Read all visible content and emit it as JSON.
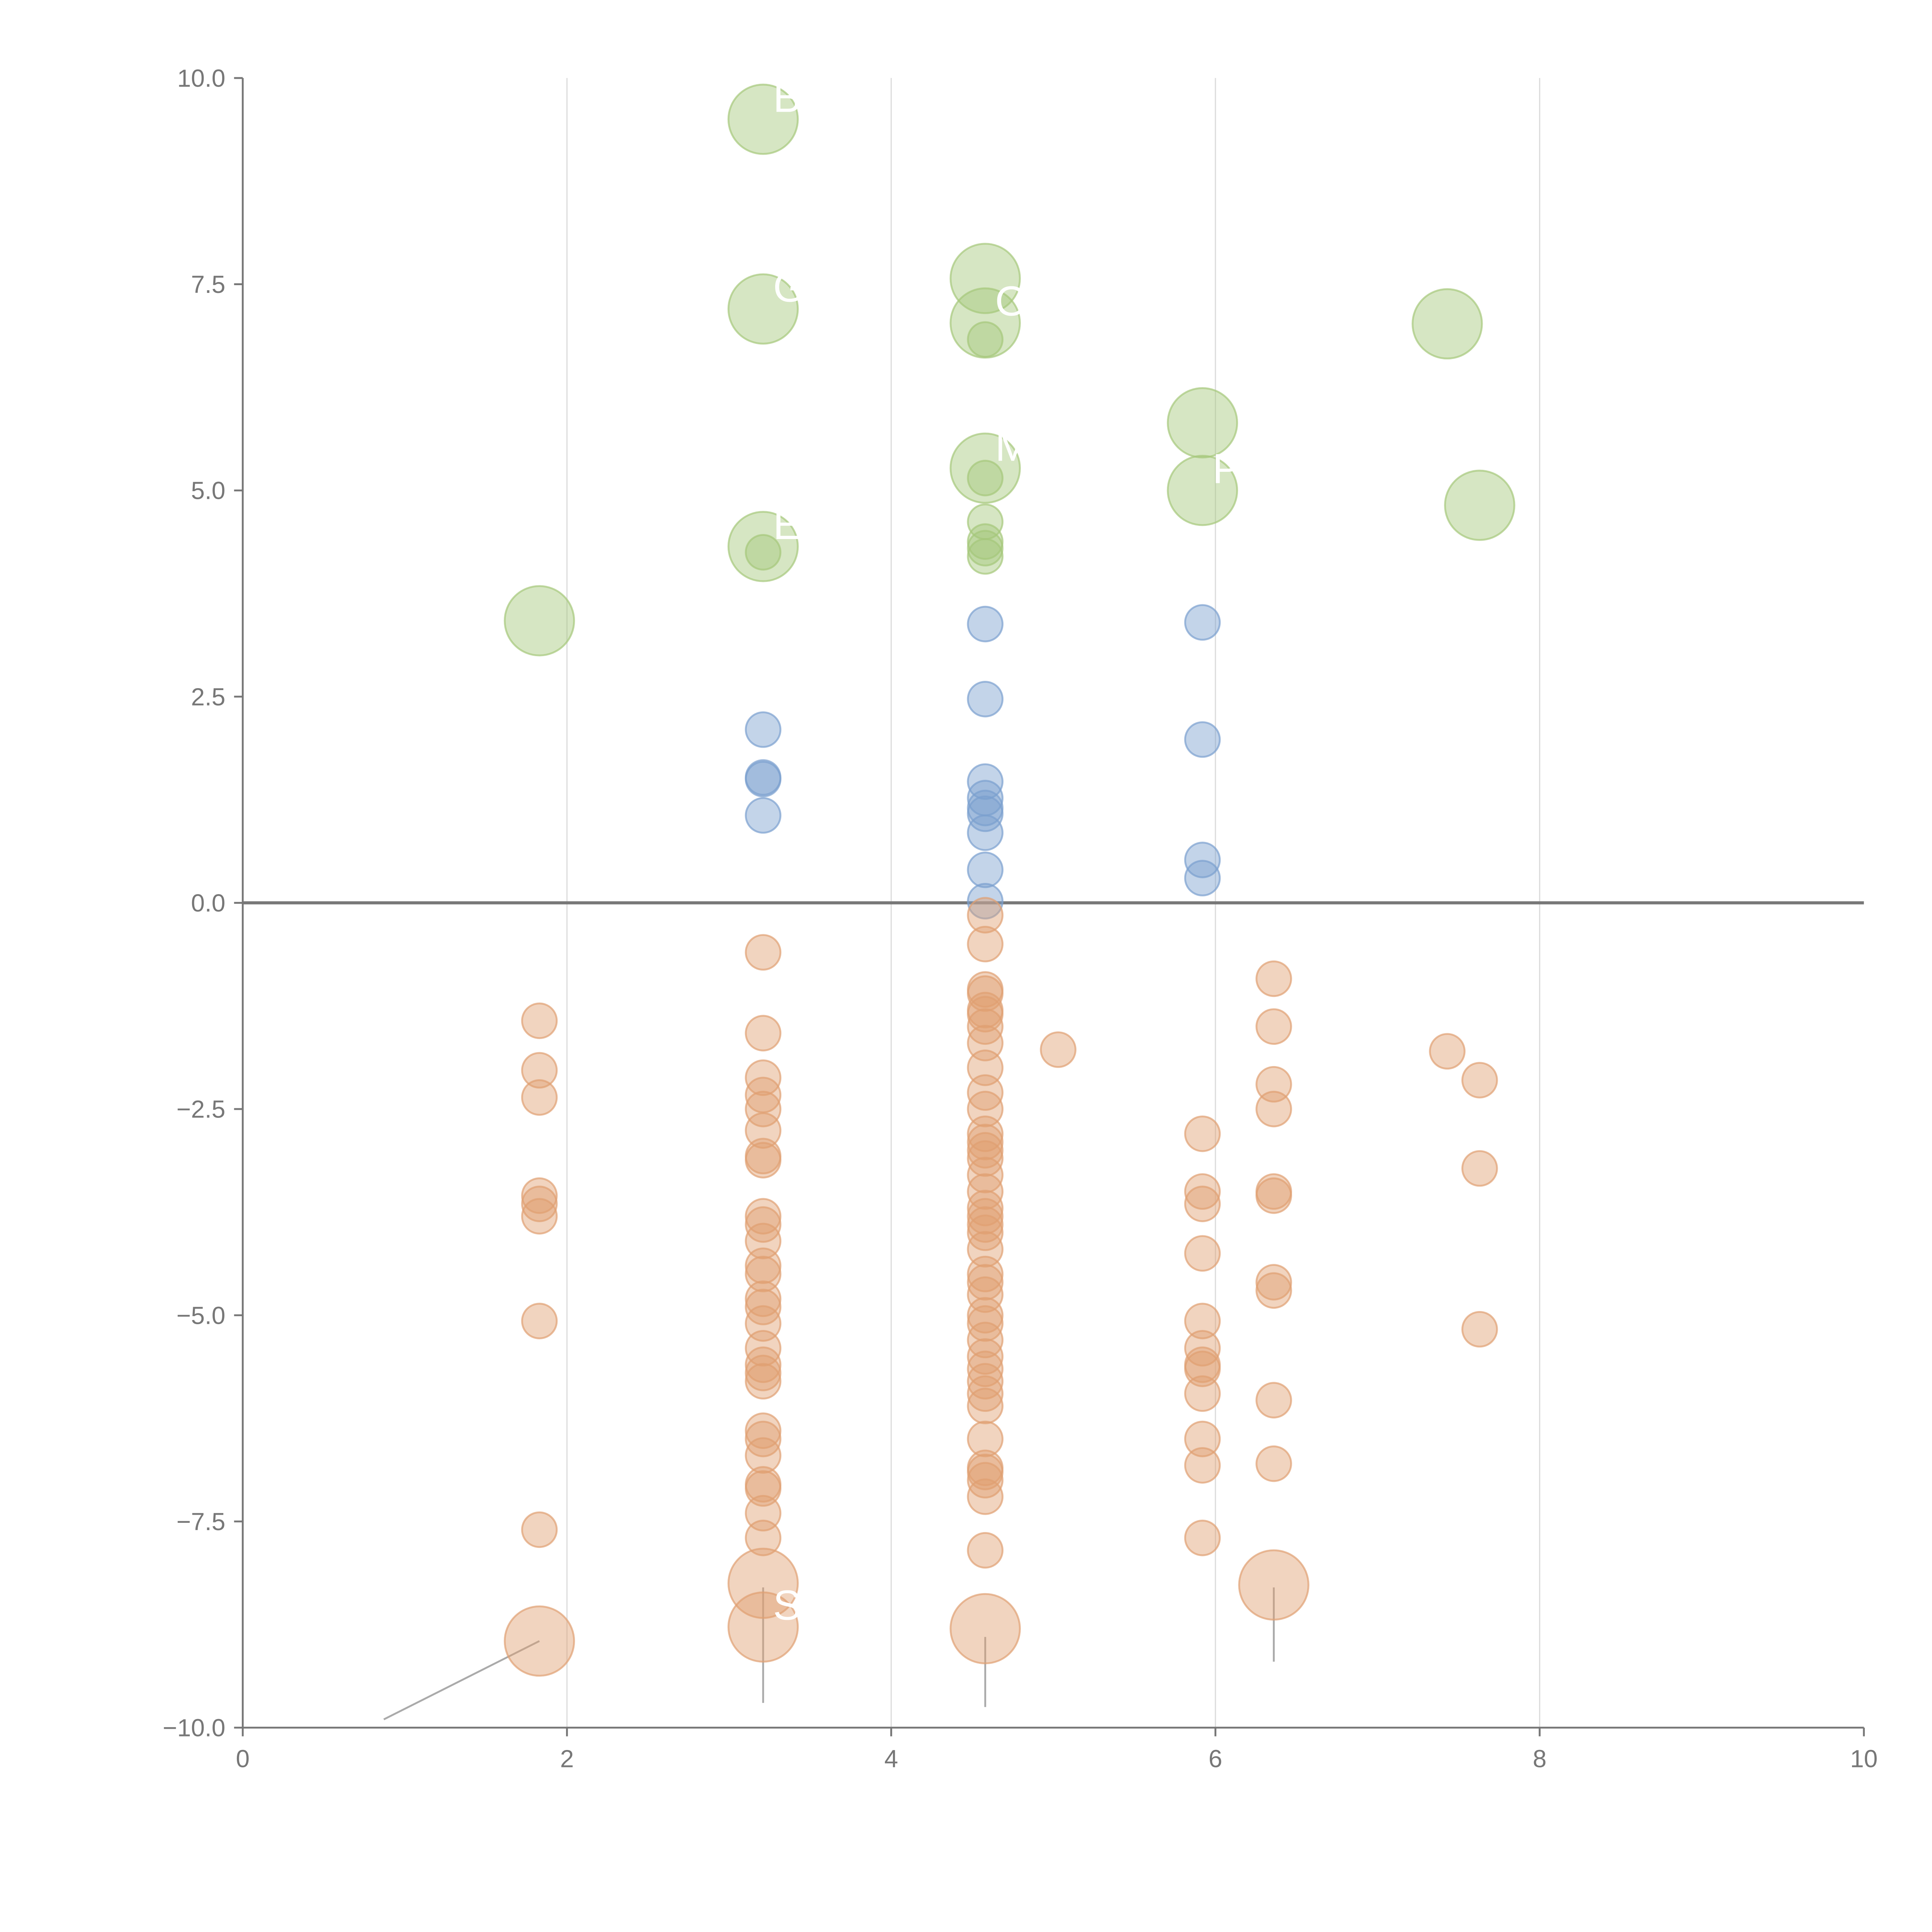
{
  "chart_data": {
    "type": "scatter",
    "title": "",
    "xlabel": "",
    "ylabel": "",
    "xlim": [
      0,
      10
    ],
    "ylim": [
      -10,
      10
    ],
    "grid": "vertical",
    "xticks": [
      "0",
      "2",
      "4",
      "6",
      "8",
      "10"
    ],
    "yticks": [
      "10.0",
      "7.5",
      "5.0",
      "2.5",
      "0.0",
      "−2.5",
      "−5.0",
      "−7.5",
      "−10.0"
    ],
    "colors": {
      "green": "#a5c77a",
      "blue": "#7a9fcf",
      "orange": "#e0a072"
    },
    "series": [
      {
        "name": "green",
        "color": "#a5c77a",
        "points": [
          [
            3.21,
            9.5,
            2,
            "B"
          ],
          [
            3.21,
            7.2,
            2,
            "G"
          ],
          [
            3.21,
            4.32,
            2,
            "E"
          ],
          [
            1.83,
            3.42,
            2,
            ""
          ],
          [
            4.58,
            7.57,
            2,
            ""
          ],
          [
            4.58,
            7.03,
            2,
            "O"
          ],
          [
            4.58,
            5.27,
            2,
            "M"
          ],
          [
            5.92,
            5.82,
            2,
            ""
          ],
          [
            5.92,
            5.0,
            2,
            "P"
          ],
          [
            7.43,
            7.02,
            2,
            ""
          ],
          [
            7.63,
            4.82,
            2,
            ""
          ],
          [
            3.21,
            4.25,
            1,
            ""
          ],
          [
            4.58,
            6.83,
            1,
            ""
          ],
          [
            4.58,
            5.15,
            1,
            ""
          ],
          [
            4.58,
            4.62,
            1,
            ""
          ],
          [
            4.58,
            4.38,
            1,
            ""
          ],
          [
            4.58,
            4.3,
            1,
            ""
          ],
          [
            4.58,
            4.2,
            1,
            ""
          ]
        ]
      },
      {
        "name": "blue",
        "color": "#7a9fcf",
        "points": [
          [
            3.21,
            2.1,
            1
          ],
          [
            3.21,
            1.52,
            1
          ],
          [
            3.21,
            1.5,
            1
          ],
          [
            3.21,
            1.06,
            1
          ],
          [
            4.58,
            3.38,
            1
          ],
          [
            4.58,
            2.47,
            1
          ],
          [
            4.58,
            1.47,
            1
          ],
          [
            4.58,
            1.27,
            1
          ],
          [
            4.58,
            1.15,
            1
          ],
          [
            4.58,
            1.08,
            1
          ],
          [
            4.58,
            0.85,
            1
          ],
          [
            4.58,
            0.4,
            1
          ],
          [
            4.58,
            0.02,
            1
          ],
          [
            5.92,
            3.4,
            1
          ],
          [
            5.92,
            1.98,
            1
          ],
          [
            5.92,
            0.52,
            1
          ],
          [
            5.92,
            0.3,
            1
          ]
        ]
      },
      {
        "name": "orange",
        "color": "#e0a072",
        "points": [
          [
            1.83,
            -1.43,
            1
          ],
          [
            1.83,
            -2.03,
            1
          ],
          [
            1.83,
            -2.36,
            1
          ],
          [
            1.83,
            -3.55,
            1
          ],
          [
            1.83,
            -3.65,
            1
          ],
          [
            1.83,
            -3.8,
            1
          ],
          [
            1.83,
            -5.07,
            1
          ],
          [
            1.83,
            -7.6,
            1
          ],
          [
            1.83,
            -8.95,
            2
          ],
          [
            3.21,
            -0.6,
            1
          ],
          [
            3.21,
            -1.58,
            1
          ],
          [
            3.21,
            -2.12,
            1
          ],
          [
            3.21,
            -2.33,
            1
          ],
          [
            3.21,
            -2.5,
            1
          ],
          [
            3.21,
            -2.76,
            1
          ],
          [
            3.21,
            -3.07,
            1
          ],
          [
            3.21,
            -3.12,
            1
          ],
          [
            3.21,
            -3.8,
            1
          ],
          [
            3.21,
            -3.9,
            1
          ],
          [
            3.21,
            -4.1,
            1
          ],
          [
            3.21,
            -4.4,
            1
          ],
          [
            3.21,
            -4.5,
            1
          ],
          [
            3.21,
            -4.8,
            1
          ],
          [
            3.21,
            -4.9,
            1
          ],
          [
            3.21,
            -5.1,
            1
          ],
          [
            3.21,
            -5.4,
            1
          ],
          [
            3.21,
            -5.6,
            1
          ],
          [
            3.21,
            -5.7,
            1
          ],
          [
            3.21,
            -5.8,
            1
          ],
          [
            3.21,
            -6.4,
            1
          ],
          [
            3.21,
            -6.5,
            1
          ],
          [
            3.21,
            -6.7,
            1
          ],
          [
            3.21,
            -7.05,
            1
          ],
          [
            3.21,
            -7.1,
            1
          ],
          [
            3.21,
            -7.4,
            1
          ],
          [
            3.21,
            -7.7,
            1
          ],
          [
            3.21,
            -8.25,
            2
          ],
          [
            3.21,
            -8.78,
            2,
            "S"
          ],
          [
            4.58,
            -0.15,
            1
          ],
          [
            4.58,
            -0.5,
            1
          ],
          [
            4.58,
            -1.05,
            1
          ],
          [
            4.58,
            -1.1,
            1
          ],
          [
            4.58,
            -1.3,
            1
          ],
          [
            4.58,
            -1.35,
            1
          ],
          [
            4.58,
            -1.5,
            1
          ],
          [
            4.58,
            -1.7,
            1
          ],
          [
            4.58,
            -2.0,
            1
          ],
          [
            4.58,
            -2.3,
            1
          ],
          [
            4.58,
            -2.5,
            1
          ],
          [
            4.58,
            -2.8,
            1
          ],
          [
            4.58,
            -2.9,
            1
          ],
          [
            4.58,
            -3.0,
            1
          ],
          [
            4.58,
            -3.1,
            1
          ],
          [
            4.58,
            -3.3,
            1
          ],
          [
            4.58,
            -3.5,
            1
          ],
          [
            4.58,
            -3.7,
            1
          ],
          [
            4.58,
            -3.8,
            1
          ],
          [
            4.58,
            -3.9,
            1
          ],
          [
            4.58,
            -4.0,
            1
          ],
          [
            4.58,
            -4.2,
            1
          ],
          [
            4.58,
            -4.5,
            1
          ],
          [
            4.58,
            -4.6,
            1
          ],
          [
            4.58,
            -4.75,
            1
          ],
          [
            4.58,
            -5.0,
            1
          ],
          [
            4.58,
            -5.1,
            1
          ],
          [
            4.58,
            -5.3,
            1
          ],
          [
            4.58,
            -5.5,
            1
          ],
          [
            4.58,
            -5.65,
            1
          ],
          [
            4.58,
            -5.8,
            1
          ],
          [
            4.58,
            -5.95,
            1
          ],
          [
            4.58,
            -6.1,
            1
          ],
          [
            4.58,
            -6.5,
            1
          ],
          [
            4.58,
            -6.85,
            1
          ],
          [
            4.58,
            -6.9,
            1
          ],
          [
            4.58,
            -7.0,
            1
          ],
          [
            4.58,
            -7.2,
            1
          ],
          [
            4.58,
            -7.85,
            1
          ],
          [
            4.58,
            -8.8,
            2
          ],
          [
            5.03,
            -1.78,
            1
          ],
          [
            5.92,
            -2.8,
            1
          ],
          [
            5.92,
            -3.5,
            1
          ],
          [
            5.92,
            -3.65,
            1
          ],
          [
            5.92,
            -4.25,
            1
          ],
          [
            5.92,
            -5.07,
            1
          ],
          [
            5.92,
            -5.4,
            1
          ],
          [
            5.92,
            -5.6,
            1
          ],
          [
            5.92,
            -5.65,
            1
          ],
          [
            5.92,
            -5.95,
            1
          ],
          [
            5.92,
            -6.5,
            1
          ],
          [
            5.92,
            -6.82,
            1
          ],
          [
            5.92,
            -7.7,
            1
          ],
          [
            6.36,
            -0.92,
            1
          ],
          [
            6.36,
            -1.5,
            1
          ],
          [
            6.36,
            -2.2,
            1
          ],
          [
            6.36,
            -2.5,
            1
          ],
          [
            6.36,
            -3.5,
            1
          ],
          [
            6.36,
            -3.55,
            1
          ],
          [
            6.36,
            -4.6,
            1
          ],
          [
            6.36,
            -4.7,
            1
          ],
          [
            6.36,
            -6.03,
            1
          ],
          [
            6.36,
            -6.8,
            1
          ],
          [
            6.36,
            -8.27,
            2
          ],
          [
            7.43,
            -1.8,
            1
          ],
          [
            7.63,
            -2.15,
            1
          ],
          [
            7.63,
            -3.22,
            1
          ],
          [
            7.63,
            -5.17,
            1
          ]
        ]
      }
    ],
    "leader_lines": [
      [
        [
          1.83,
          -8.95
        ],
        [
          0.87,
          -9.9
        ]
      ],
      [
        [
          3.21,
          -8.3
        ],
        [
          3.21,
          -9.7
        ]
      ],
      [
        [
          4.58,
          -8.9
        ],
        [
          4.58,
          -9.75
        ]
      ],
      [
        [
          6.36,
          -8.3
        ],
        [
          6.36,
          -9.2
        ]
      ]
    ]
  }
}
